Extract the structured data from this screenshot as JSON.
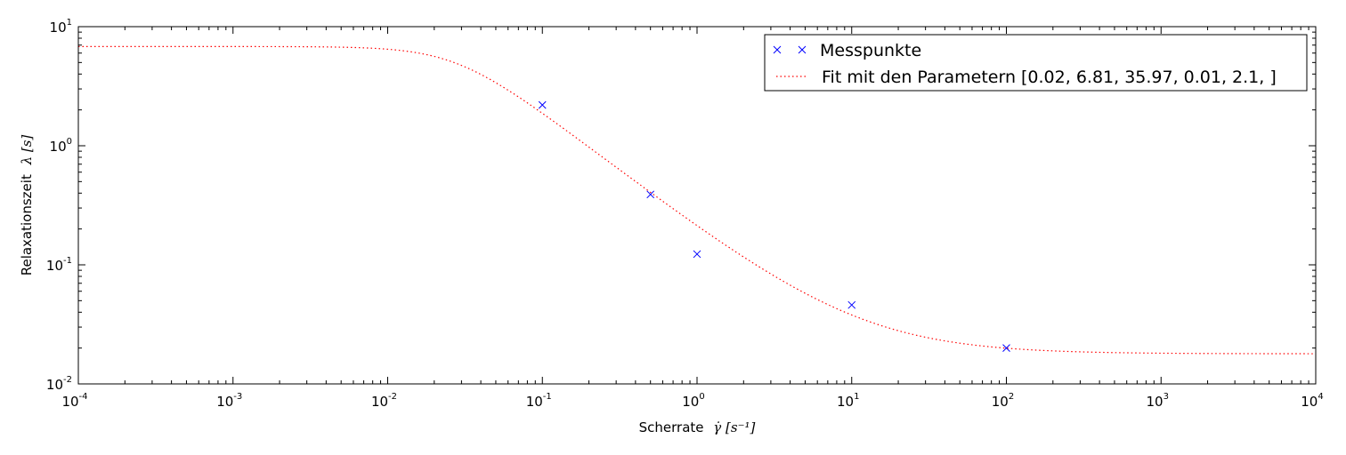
{
  "chart_data": {
    "type": "scatter",
    "x_scale": "log",
    "y_scale": "log",
    "xlim": [
      0.0001,
      10000
    ],
    "ylim": [
      0.01,
      10
    ],
    "xlabel_prefix": "Scherrate",
    "xlabel_math": "γ̇ [s⁻¹]",
    "ylabel_prefix": "Relaxationszeit",
    "ylabel_math": "λ [s]",
    "x_ticks": [
      {
        "base": "10",
        "exp": "-4",
        "value": 0.0001
      },
      {
        "base": "10",
        "exp": "-3",
        "value": 0.001
      },
      {
        "base": "10",
        "exp": "-2",
        "value": 0.01
      },
      {
        "base": "10",
        "exp": "-1",
        "value": 0.1
      },
      {
        "base": "10",
        "exp": "0",
        "value": 1
      },
      {
        "base": "10",
        "exp": "1",
        "value": 10
      },
      {
        "base": "10",
        "exp": "2",
        "value": 100
      },
      {
        "base": "10",
        "exp": "3",
        "value": 1000
      },
      {
        "base": "10",
        "exp": "4",
        "value": 10000
      }
    ],
    "y_ticks": [
      {
        "base": "10",
        "exp": "-2",
        "value": 0.01
      },
      {
        "base": "10",
        "exp": "-1",
        "value": 0.1
      },
      {
        "base": "10",
        "exp": "0",
        "value": 1
      },
      {
        "base": "10",
        "exp": "1",
        "value": 10
      }
    ],
    "grid": false,
    "legend_position": "top-right",
    "series": [
      {
        "name": "Messpunkte",
        "kind": "points",
        "marker": "x",
        "color": "#0000ff",
        "points": [
          {
            "x": 0.1,
            "y": 2.2
          },
          {
            "x": 0.5,
            "y": 0.39
          },
          {
            "x": 1,
            "y": 0.123
          },
          {
            "x": 10,
            "y": 0.046
          },
          {
            "x": 100,
            "y": 0.02
          }
        ]
      },
      {
        "name": "Fit mit den Parametern [0.02, 6.81, 35.97, 0.01, 2.1, ]",
        "kind": "line",
        "linestyle": "dotted",
        "color": "#ff0000",
        "model": {
          "eta_inf": 0.0179,
          "eta_0": 6.81,
          "lambda": 35.97,
          "a": 2.1,
          "n": 0.01
        }
      }
    ]
  }
}
